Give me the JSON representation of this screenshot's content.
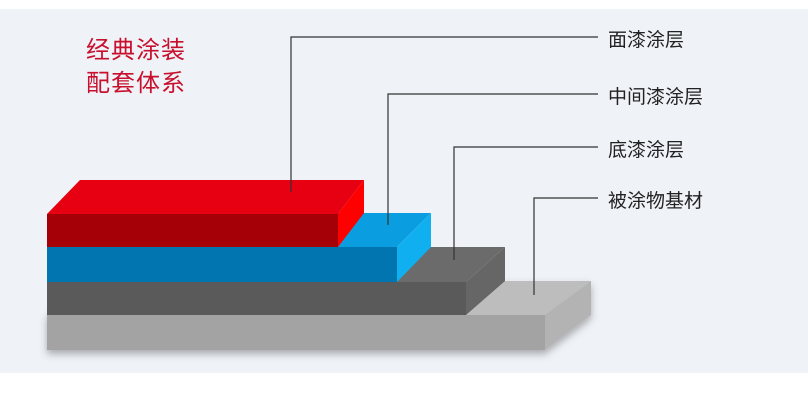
{
  "title": {
    "line1": "经典涂装",
    "line2": "配套体系"
  },
  "layers": [
    {
      "label": "面漆涂层",
      "color": "#e60012"
    },
    {
      "label": "中间漆涂层",
      "color": "#0075b0"
    },
    {
      "label": "底漆涂层",
      "color": "#5a5a5a"
    },
    {
      "label": "被涂物基材",
      "color": "#a3a3a3"
    }
  ],
  "colors": {
    "title": "#c8102e",
    "background": "#eff2f7"
  }
}
